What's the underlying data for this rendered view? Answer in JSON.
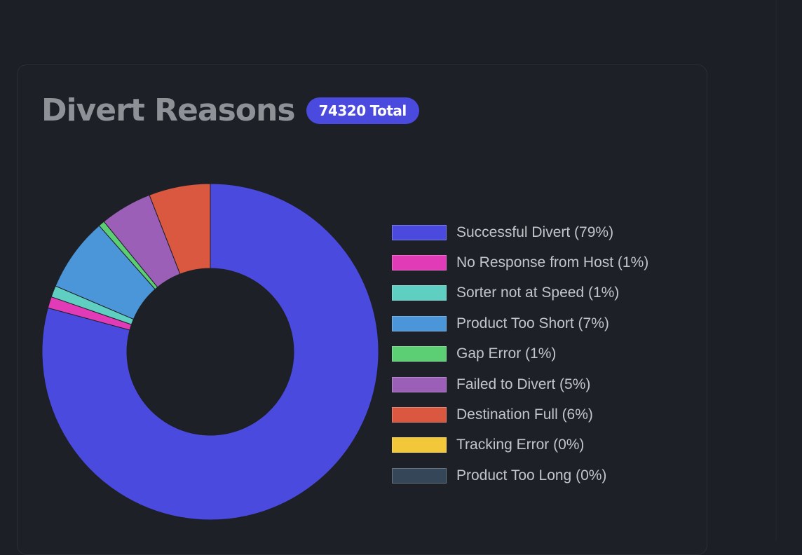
{
  "card": {
    "title": "Divert Reasons",
    "badge_total": "74320",
    "badge_suffix": "Total"
  },
  "chart_data": {
    "type": "pie",
    "style": "doughnut",
    "legend_position": "right",
    "categories": [
      "Successful Divert (79%)",
      "No Response from Host (1%)",
      "Sorter not at Speed (1%)",
      "Product Too Short (7%)",
      "Gap Error (1%)",
      "Failed to Divert (5%)",
      "Destination Full (6%)",
      "Tracking Error (0%)",
      "Product Too Long (0%)"
    ],
    "values": [
      79.2,
      1.1,
      1.1,
      7.1,
      0.6,
      5.0,
      5.9,
      0,
      0
    ],
    "colors": [
      "#4b4ade",
      "#e23bb8",
      "#5ecfc0",
      "#4b96d8",
      "#5ccf75",
      "#9b5fb7",
      "#d9583f",
      "#f2c83a",
      "#344658"
    ]
  }
}
